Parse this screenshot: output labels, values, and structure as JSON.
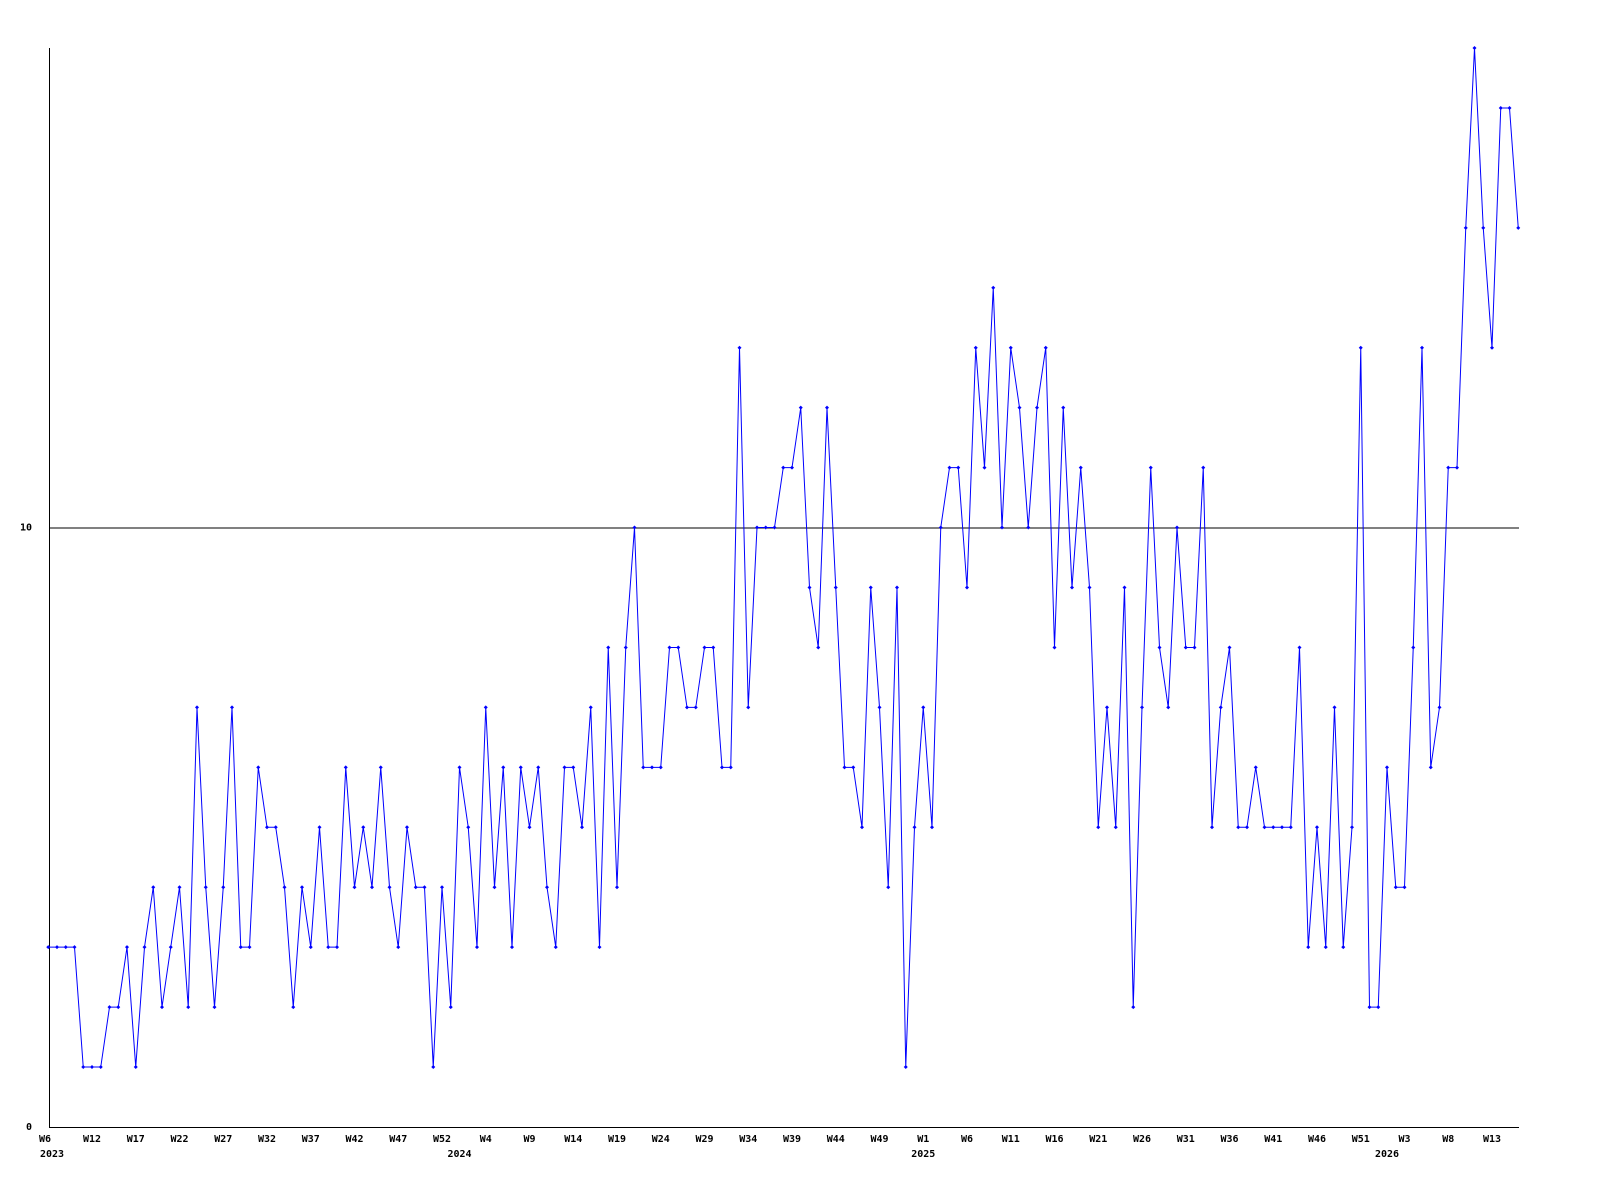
{
  "chart_data": {
    "type": "line",
    "categories": [
      "W6",
      null,
      null,
      null,
      null,
      null,
      "W12",
      null,
      null,
      null,
      null,
      "W17",
      null,
      null,
      null,
      null,
      "W22",
      null,
      null,
      null,
      null,
      "W27",
      null,
      null,
      null,
      null,
      "W32",
      null,
      null,
      null,
      null,
      "W37",
      null,
      null,
      null,
      null,
      "W42",
      null,
      null,
      null,
      null,
      "W47",
      null,
      null,
      null,
      null,
      "W52",
      null,
      null,
      null,
      null,
      "W4",
      null,
      null,
      null,
      null,
      "W9",
      null,
      null,
      null,
      null,
      "W14",
      null,
      null,
      null,
      null,
      "W19",
      null,
      null,
      null,
      null,
      "W24",
      null,
      null,
      null,
      null,
      "W29",
      null,
      null,
      null,
      null,
      "W34",
      null,
      null,
      null,
      null,
      "W39",
      null,
      null,
      null,
      null,
      "W44",
      null,
      null,
      null,
      null,
      "W49",
      null,
      null,
      null,
      null,
      "W1",
      null,
      null,
      null,
      null,
      "W6",
      null,
      null,
      null,
      null,
      "W11",
      null,
      null,
      null,
      null,
      "W16",
      null,
      null,
      null,
      null,
      "W21",
      null,
      null,
      null,
      null,
      "W26",
      null,
      null,
      null,
      null,
      "W31",
      null,
      null,
      null,
      null,
      "W36",
      null,
      null,
      null,
      null,
      "W41",
      null,
      null,
      null,
      null,
      "W46",
      null,
      null,
      null,
      null,
      "W51",
      null,
      null,
      null,
      null,
      "W3",
      null,
      null,
      null,
      null,
      "W8",
      null,
      null,
      null,
      null,
      "W13",
      null,
      null,
      null
    ],
    "year_labels": [
      "2023",
      null,
      null,
      null,
      null,
      null,
      null,
      null,
      null,
      null,
      null,
      null,
      null,
      null,
      null,
      null,
      null,
      null,
      null,
      null,
      null,
      null,
      null,
      null,
      null,
      null,
      null,
      null,
      null,
      null,
      null,
      null,
      null,
      null,
      null,
      null,
      null,
      null,
      null,
      null,
      null,
      null,
      null,
      null,
      null,
      null,
      null,
      null,
      "2024",
      null,
      null,
      null,
      null,
      null,
      null,
      null,
      null,
      null,
      null,
      null,
      null,
      null,
      null,
      null,
      null,
      null,
      null,
      null,
      null,
      null,
      null,
      null,
      null,
      null,
      null,
      null,
      null,
      null,
      null,
      null,
      null,
      null,
      null,
      null,
      null,
      null,
      null,
      null,
      null,
      null,
      null,
      null,
      null,
      null,
      null,
      null,
      null,
      null,
      null,
      null,
      null,
      "2025",
      null,
      null,
      null,
      null,
      null,
      null,
      null,
      null,
      null,
      null,
      null,
      null,
      null,
      null,
      null,
      null,
      null,
      null,
      null,
      null,
      null,
      null,
      null,
      null,
      null,
      null,
      null,
      null,
      null,
      null,
      null,
      null,
      null,
      null,
      null,
      null,
      null,
      null,
      null,
      null,
      null,
      null,
      null,
      null,
      null,
      null,
      null,
      null,
      null,
      null,
      null,
      null,
      "2026",
      null,
      null,
      null,
      null,
      null,
      null,
      null,
      null,
      null,
      null,
      null,
      null,
      null,
      null,
      null
    ],
    "values": [
      null,
      3,
      3,
      3,
      3,
      1,
      1,
      1,
      2,
      2,
      3,
      1,
      3,
      4,
      2,
      3,
      4,
      2,
      7,
      4,
      2,
      4,
      7,
      3,
      3,
      6,
      5,
      5,
      4,
      2,
      4,
      3,
      5,
      3,
      3,
      6,
      4,
      5,
      4,
      6,
      4,
      3,
      5,
      4,
      4,
      1,
      4,
      2,
      6,
      5,
      3,
      7,
      4,
      6,
      3,
      6,
      5,
      6,
      4,
      3,
      6,
      6,
      5,
      7,
      3,
      8,
      4,
      8,
      10,
      6,
      6,
      6,
      8,
      8,
      7,
      7,
      8,
      8,
      6,
      6,
      13,
      7,
      10,
      10,
      10,
      11,
      11,
      12,
      9,
      8,
      12,
      9,
      6,
      6,
      5,
      9,
      7,
      4,
      9,
      1,
      5,
      7,
      5,
      10,
      11,
      11,
      9,
      13,
      11,
      14,
      10,
      13,
      12,
      10,
      12,
      13,
      8,
      12,
      9,
      11,
      9,
      5,
      7,
      5,
      9,
      2,
      7,
      11,
      8,
      7,
      10,
      8,
      8,
      11,
      5,
      7,
      8,
      5,
      5,
      6,
      5,
      5,
      5,
      5,
      8,
      3,
      5,
      3,
      7,
      3,
      5,
      13,
      2,
      2,
      6,
      4,
      4,
      8,
      13,
      6,
      7,
      11,
      11,
      15,
      18,
      15,
      13,
      17,
      17,
      15
    ],
    "color": "#0000ff",
    "ylim": [
      0,
      18
    ],
    "yticks": [
      0,
      10
    ],
    "grid": true
  }
}
